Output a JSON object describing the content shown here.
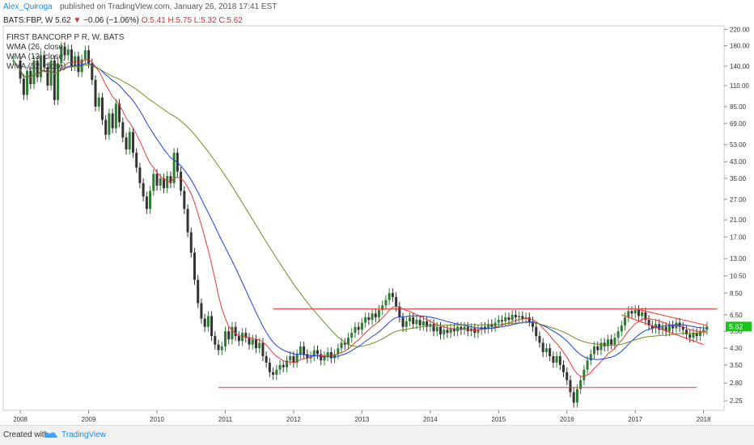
{
  "header": {
    "author": "Alex_Quiroga",
    "published": "published on TradingView.com, January 26, 2018 17:41 EST"
  },
  "symbol": {
    "ticker": "BATS:FBP, W",
    "last": "5.62",
    "change": "−0.06 (−1.06%)",
    "ohlc": "O:5.41 H:5.75 L:5.32 C:5.62"
  },
  "legend": {
    "title": "FIRST BANCORP P R, W, BATS",
    "wma1": "WMA (26, close)",
    "wma2": "WMA (13, close)",
    "wma3": "WMA (52, close)"
  },
  "footer": {
    "created_with": "Created with",
    "brand": "TradingView"
  },
  "chart_data": {
    "type": "line",
    "y_scale": "log",
    "ylim": [
      2.0,
      230.0
    ],
    "y_ticks": [
      "220.00",
      "180.00",
      "140.00",
      "110.00",
      "85.00",
      "69.00",
      "53.00",
      "43.00",
      "35.00",
      "27.00",
      "21.00",
      "17.00",
      "13.00",
      "10.50",
      "8.50",
      "6.50",
      "5.30",
      "4.30",
      "3.50",
      "2.80",
      "2.25"
    ],
    "x_ticks": [
      "2008",
      "2009",
      "2010",
      "2011",
      "2012",
      "2013",
      "2014",
      "2015",
      "2016",
      "2017",
      "2018"
    ],
    "last_price_label": "5.62",
    "colors": {
      "up": "#2e7d32",
      "down": "#333333",
      "wma26": "#1e3fe0",
      "wma13": "#e53935",
      "wma52": "#6b8e23",
      "support": "#ff2b2b",
      "last": "#1ec21e"
    },
    "price_series": {
      "name": "FBP",
      "points": [
        [
          2007.9,
          150
        ],
        [
          2008.0,
          120
        ],
        [
          2008.05,
          98
        ],
        [
          2008.1,
          132
        ],
        [
          2008.15,
          112
        ],
        [
          2008.2,
          150
        ],
        [
          2008.25,
          122
        ],
        [
          2008.3,
          160
        ],
        [
          2008.35,
          138
        ],
        [
          2008.4,
          110
        ],
        [
          2008.45,
          150
        ],
        [
          2008.5,
          92
        ],
        [
          2008.55,
          145
        ],
        [
          2008.6,
          178
        ],
        [
          2008.65,
          160
        ],
        [
          2008.7,
          172
        ],
        [
          2008.75,
          140
        ],
        [
          2008.8,
          158
        ],
        [
          2008.85,
          130
        ],
        [
          2008.9,
          152
        ],
        [
          2008.95,
          170
        ],
        [
          2009.0,
          145
        ],
        [
          2009.05,
          118
        ],
        [
          2009.1,
          85
        ],
        [
          2009.15,
          95
        ],
        [
          2009.2,
          72
        ],
        [
          2009.25,
          60
        ],
        [
          2009.3,
          78
        ],
        [
          2009.35,
          65
        ],
        [
          2009.4,
          88
        ],
        [
          2009.45,
          70
        ],
        [
          2009.5,
          58
        ],
        [
          2009.55,
          50
        ],
        [
          2009.6,
          62
        ],
        [
          2009.65,
          48
        ],
        [
          2009.7,
          40
        ],
        [
          2009.75,
          33
        ],
        [
          2009.8,
          28
        ],
        [
          2009.85,
          24
        ],
        [
          2009.9,
          30
        ],
        [
          2009.95,
          37
        ],
        [
          2010.0,
          32
        ],
        [
          2010.05,
          35
        ],
        [
          2010.1,
          31
        ],
        [
          2010.15,
          36
        ],
        [
          2010.2,
          33
        ],
        [
          2010.25,
          48
        ],
        [
          2010.3,
          38
        ],
        [
          2010.35,
          30
        ],
        [
          2010.4,
          24
        ],
        [
          2010.45,
          18
        ],
        [
          2010.5,
          14
        ],
        [
          2010.55,
          10
        ],
        [
          2010.6,
          7.5
        ],
        [
          2010.65,
          6.2
        ],
        [
          2010.7,
          5.6
        ],
        [
          2010.75,
          6.4
        ],
        [
          2010.8,
          5.0
        ],
        [
          2010.85,
          4.5
        ],
        [
          2010.9,
          4.2
        ],
        [
          2010.95,
          4.4
        ],
        [
          2011.0,
          5.3
        ],
        [
          2011.05,
          4.8
        ],
        [
          2011.1,
          5.6
        ],
        [
          2011.15,
          5.0
        ],
        [
          2011.2,
          4.7
        ],
        [
          2011.25,
          5.2
        ],
        [
          2011.3,
          4.9
        ],
        [
          2011.35,
          4.5
        ],
        [
          2011.4,
          4.8
        ],
        [
          2011.45,
          4.3
        ],
        [
          2011.5,
          4.6
        ],
        [
          2011.55,
          3.9
        ],
        [
          2011.6,
          3.6
        ],
        [
          2011.65,
          3.2
        ],
        [
          2011.7,
          3.1
        ],
        [
          2011.75,
          3.3
        ],
        [
          2011.8,
          3.5
        ],
        [
          2011.85,
          3.4
        ],
        [
          2011.9,
          3.7
        ],
        [
          2011.95,
          3.9
        ],
        [
          2012.0,
          3.6
        ],
        [
          2012.05,
          4.0
        ],
        [
          2012.1,
          4.4
        ],
        [
          2012.15,
          4.0
        ],
        [
          2012.2,
          3.8
        ],
        [
          2012.25,
          3.9
        ],
        [
          2012.3,
          4.2
        ],
        [
          2012.35,
          4.0
        ],
        [
          2012.4,
          3.7
        ],
        [
          2012.45,
          3.9
        ],
        [
          2012.5,
          4.1
        ],
        [
          2012.55,
          3.8
        ],
        [
          2012.6,
          4.0
        ],
        [
          2012.65,
          4.3
        ],
        [
          2012.7,
          4.6
        ],
        [
          2012.75,
          4.5
        ],
        [
          2012.8,
          4.9
        ],
        [
          2012.85,
          5.2
        ],
        [
          2012.9,
          5.6
        ],
        [
          2012.95,
          5.4
        ],
        [
          2013.0,
          5.9
        ],
        [
          2013.05,
          6.3
        ],
        [
          2013.1,
          6.1
        ],
        [
          2013.15,
          6.6
        ],
        [
          2013.2,
          6.3
        ],
        [
          2013.25,
          6.9
        ],
        [
          2013.3,
          7.3
        ],
        [
          2013.35,
          7.8
        ],
        [
          2013.4,
          8.5
        ],
        [
          2013.45,
          8.1
        ],
        [
          2013.5,
          7.2
        ],
        [
          2013.55,
          6.3
        ],
        [
          2013.6,
          5.6
        ],
        [
          2013.65,
          6.0
        ],
        [
          2013.7,
          6.3
        ],
        [
          2013.75,
          5.8
        ],
        [
          2013.8,
          6.1
        ],
        [
          2013.85,
          5.7
        ],
        [
          2013.9,
          6.0
        ],
        [
          2013.95,
          5.6
        ],
        [
          2014.0,
          5.8
        ],
        [
          2014.05,
          5.3
        ],
        [
          2014.1,
          5.6
        ],
        [
          2014.15,
          5.1
        ],
        [
          2014.2,
          5.4
        ],
        [
          2014.25,
          5.2
        ],
        [
          2014.3,
          5.5
        ],
        [
          2014.35,
          5.3
        ],
        [
          2014.4,
          5.6
        ],
        [
          2014.45,
          5.4
        ],
        [
          2014.5,
          5.6
        ],
        [
          2014.55,
          5.3
        ],
        [
          2014.6,
          5.5
        ],
        [
          2014.65,
          5.2
        ],
        [
          2014.7,
          5.4
        ],
        [
          2014.75,
          5.6
        ],
        [
          2014.8,
          5.5
        ],
        [
          2014.85,
          5.8
        ],
        [
          2014.9,
          5.6
        ],
        [
          2014.95,
          5.9
        ],
        [
          2015.0,
          6.1
        ],
        [
          2015.05,
          6.0
        ],
        [
          2015.1,
          6.3
        ],
        [
          2015.15,
          6.1
        ],
        [
          2015.2,
          6.5
        ],
        [
          2015.25,
          6.3
        ],
        [
          2015.3,
          6.4
        ],
        [
          2015.35,
          6.2
        ],
        [
          2015.4,
          6.3
        ],
        [
          2015.45,
          6.0
        ],
        [
          2015.5,
          5.6
        ],
        [
          2015.55,
          5.0
        ],
        [
          2015.6,
          4.6
        ],
        [
          2015.65,
          4.1
        ],
        [
          2015.7,
          4.3
        ],
        [
          2015.75,
          3.9
        ],
        [
          2015.8,
          3.6
        ],
        [
          2015.85,
          3.9
        ],
        [
          2015.9,
          3.5
        ],
        [
          2015.95,
          3.2
        ],
        [
          2016.0,
          2.9
        ],
        [
          2016.05,
          2.5
        ],
        [
          2016.1,
          2.2
        ],
        [
          2016.15,
          2.6
        ],
        [
          2016.2,
          2.9
        ],
        [
          2016.25,
          3.3
        ],
        [
          2016.3,
          3.7
        ],
        [
          2016.35,
          4.0
        ],
        [
          2016.4,
          4.4
        ],
        [
          2016.45,
          4.2
        ],
        [
          2016.5,
          4.6
        ],
        [
          2016.55,
          4.4
        ],
        [
          2016.6,
          4.8
        ],
        [
          2016.65,
          4.5
        ],
        [
          2016.7,
          4.9
        ],
        [
          2016.75,
          5.3
        ],
        [
          2016.8,
          5.7
        ],
        [
          2016.85,
          6.3
        ],
        [
          2016.9,
          6.8
        ],
        [
          2016.95,
          6.6
        ],
        [
          2017.0,
          6.9
        ],
        [
          2017.05,
          6.4
        ],
        [
          2017.1,
          6.7
        ],
        [
          2017.15,
          6.1
        ],
        [
          2017.2,
          5.7
        ],
        [
          2017.25,
          5.5
        ],
        [
          2017.3,
          5.8
        ],
        [
          2017.35,
          5.4
        ],
        [
          2017.4,
          5.6
        ],
        [
          2017.45,
          5.3
        ],
        [
          2017.5,
          5.7
        ],
        [
          2017.55,
          5.5
        ],
        [
          2017.6,
          5.9
        ],
        [
          2017.65,
          5.6
        ],
        [
          2017.7,
          5.4
        ],
        [
          2017.75,
          5.1
        ],
        [
          2017.8,
          4.9
        ],
        [
          2017.85,
          5.2
        ],
        [
          2017.9,
          5.0
        ],
        [
          2017.95,
          5.3
        ],
        [
          2018.0,
          5.4
        ],
        [
          2018.05,
          5.62
        ]
      ]
    },
    "annotations": {
      "resistance": {
        "x": [
          2011.7,
          2018.2
        ],
        "y": 7.0
      },
      "support": {
        "x": [
          2010.9,
          2017.9
        ],
        "y": 2.65
      },
      "channel_upper": {
        "x": [
          2017.0,
          2018.05
        ],
        "y": [
          7.0,
          5.7
        ]
      },
      "channel_lower": {
        "x": [
          2016.8,
          2018.0
        ],
        "y": [
          6.5,
          4.5
        ]
      }
    }
  }
}
